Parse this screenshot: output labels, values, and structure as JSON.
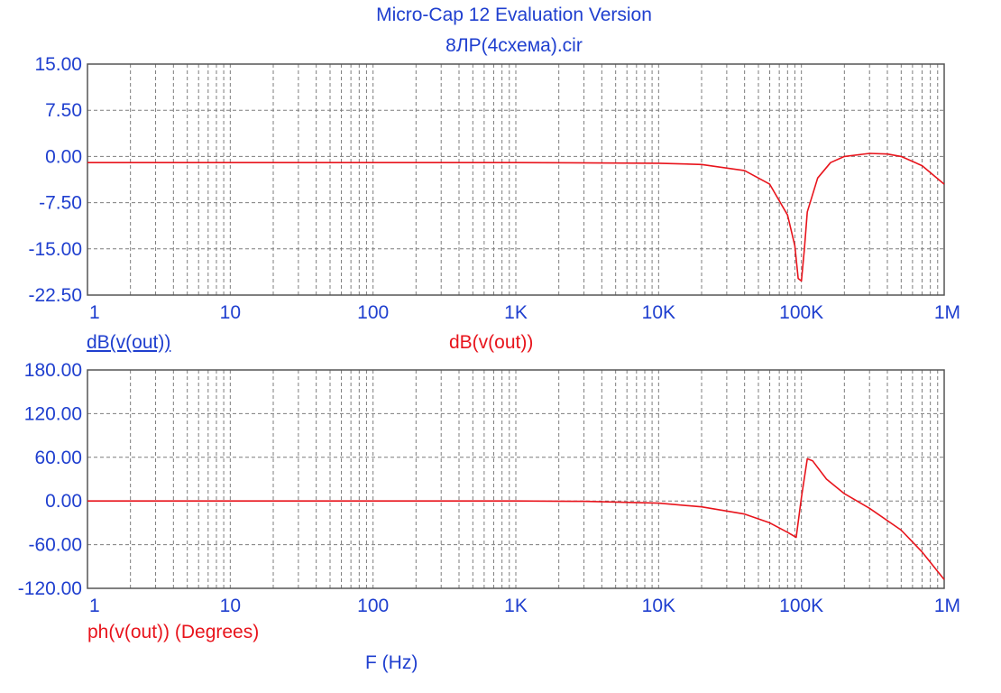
{
  "title": "Micro-Cap 12 Evaluation Version",
  "subtitle": "8ЛР(4схема).cir",
  "colors": {
    "axis_text": "#1f3fcf",
    "trace": "#e8141c",
    "grid": "#7d7d7d",
    "frame": "#555555"
  },
  "labels": {
    "top_left": "dB(v(out))",
    "top_trace": "dB(v(out))",
    "bottom_trace": "ph(v(out)) (Degrees)",
    "x_axis": "F (Hz)"
  },
  "chart_data": [
    {
      "type": "line",
      "xscale": "log",
      "xlim": [
        1,
        1000000
      ],
      "ylim": [
        -22.5,
        15.0
      ],
      "xticks": [
        "1",
        "10",
        "100",
        "1K",
        "10K",
        "100K",
        "1M"
      ],
      "yticks": [
        "15.00",
        "7.50",
        "0.00",
        "-7.50",
        "-15.00",
        "-22.50"
      ],
      "grid": true,
      "series": [
        {
          "name": "dB(v(out))",
          "x": [
            1,
            10,
            100,
            1000,
            10000,
            20000,
            40000,
            60000,
            80000,
            90000,
            95000,
            100000,
            105000,
            110000,
            130000,
            160000,
            200000,
            300000,
            400000,
            500000,
            700000,
            1000000
          ],
          "y": [
            -1.0,
            -1.0,
            -1.0,
            -1.0,
            -1.1,
            -1.3,
            -2.3,
            -4.5,
            -9.5,
            -14.5,
            -19.8,
            -20.2,
            -15.0,
            -9.0,
            -3.5,
            -1.0,
            0.0,
            0.5,
            0.4,
            0.0,
            -1.5,
            -4.5
          ]
        }
      ]
    },
    {
      "type": "line",
      "xscale": "log",
      "xlim": [
        1,
        1000000
      ],
      "ylim": [
        -120.0,
        180.0
      ],
      "xticks": [
        "1",
        "10",
        "100",
        "1K",
        "10K",
        "100K",
        "1M"
      ],
      "yticks": [
        "180.00",
        "120.00",
        "60.00",
        "0.00",
        "-60.00",
        "-120.00"
      ],
      "grid": true,
      "series": [
        {
          "name": "ph(v(out)) (Degrees)",
          "x": [
            1,
            10,
            100,
            1000,
            3000,
            10000,
            20000,
            40000,
            60000,
            80000,
            92000,
            100000,
            110000,
            120000,
            150000,
            200000,
            300000,
            500000,
            700000,
            1000000
          ],
          "y": [
            0,
            0,
            0,
            0,
            -0.5,
            -3,
            -8,
            -18,
            -30,
            -43,
            -50,
            5,
            58,
            55,
            30,
            10,
            -10,
            -40,
            -70,
            -108
          ]
        }
      ]
    }
  ]
}
